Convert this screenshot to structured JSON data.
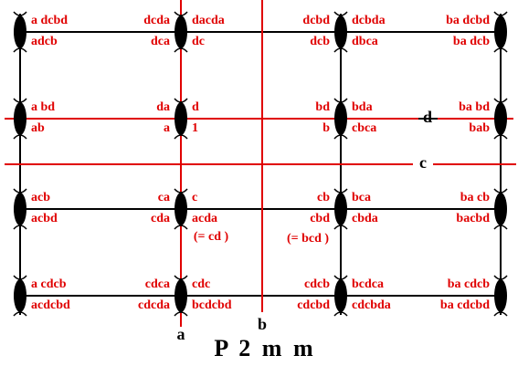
{
  "title": "P 2 m m",
  "axes": {
    "a": "a",
    "b": "b",
    "c": "c",
    "d": "d"
  },
  "nodes": [
    [
      {
        "right": [
          "a dcbd",
          "adcb"
        ]
      },
      {
        "left": [
          "dcda",
          "dca"
        ],
        "right": [
          "dacda",
          "dc"
        ]
      },
      {
        "left": [
          "dcbd",
          "dcb"
        ],
        "right": [
          "dcbda",
          "dbca"
        ]
      },
      {
        "left": [
          "ba dcbd",
          "ba dcb"
        ]
      }
    ],
    [
      {
        "right": [
          "a bd",
          "ab"
        ]
      },
      {
        "left": [
          "da",
          "a"
        ],
        "right": [
          "d",
          "1"
        ]
      },
      {
        "left": [
          "bd",
          "b"
        ],
        "right": [
          "bda",
          "cbca"
        ]
      },
      {
        "left": [
          "ba bd",
          "bab"
        ]
      }
    ],
    [
      {
        "right": [
          "acb",
          "acbd"
        ]
      },
      {
        "left": [
          "ca",
          "cda"
        ],
        "right": [
          "c",
          "acda"
        ]
      },
      {
        "left": [
          "cb",
          "cbd"
        ],
        "right": [
          "bca",
          "cbda"
        ]
      },
      {
        "left": [
          "ba cb",
          "bacbd"
        ]
      }
    ],
    [
      {
        "right": [
          "a cdcb",
          "acdcbd"
        ]
      },
      {
        "left": [
          "cdca",
          "cdcda"
        ],
        "right": [
          "cdc",
          "bcdcbd"
        ]
      },
      {
        "left": [
          "cdcb",
          "cdcbd"
        ],
        "right": [
          "bcdca",
          "cdcbda"
        ]
      },
      {
        "left": [
          "ba cdcb",
          "ba cdcbd"
        ]
      }
    ]
  ],
  "notes": [
    "(= cd )",
    "(= bcd )"
  ]
}
